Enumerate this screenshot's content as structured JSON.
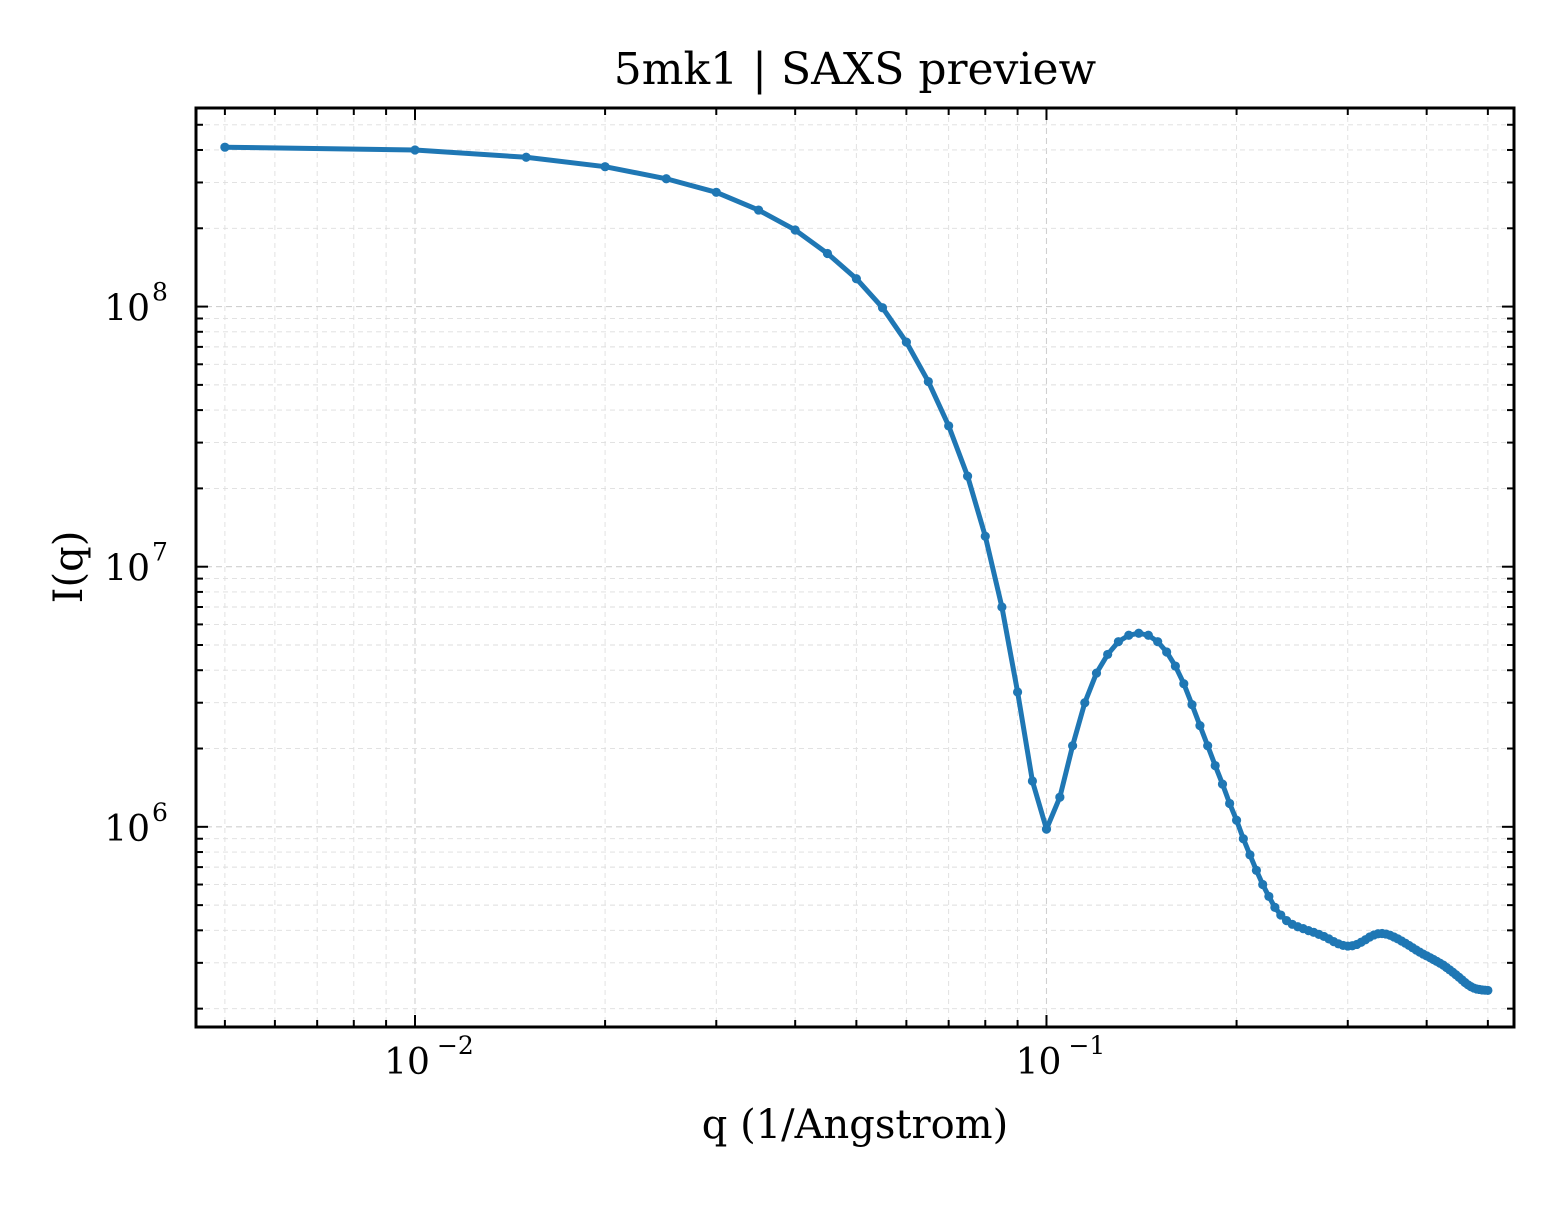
{
  "chart_data": {
    "type": "line",
    "title": "5mk1 | SAXS preview",
    "xlabel": "q (1/Angstrom)",
    "ylabel": "I(q)",
    "xscale": "log",
    "yscale": "log",
    "xlim": [
      0.0045,
      0.55
    ],
    "ylim": [
      170000,
      580000000
    ],
    "x_ticks": [
      {
        "value": 0.01,
        "base": "10",
        "exp": "−2"
      },
      {
        "value": 0.1,
        "base": "10",
        "exp": "−1"
      }
    ],
    "y_ticks": [
      {
        "value": 1000000,
        "base": "10",
        "exp": "6"
      },
      {
        "value": 10000000,
        "base": "10",
        "exp": "7"
      },
      {
        "value": 100000000,
        "base": "10",
        "exp": "8"
      }
    ],
    "grid": true,
    "colors": {
      "series": "#1f77b4"
    },
    "series": [
      {
        "x": [
          0.005,
          0.01,
          0.015,
          0.02,
          0.025,
          0.03,
          0.035,
          0.04,
          0.045,
          0.05,
          0.055,
          0.06,
          0.065,
          0.07,
          0.075,
          0.08,
          0.085,
          0.09,
          0.095,
          0.1,
          0.105,
          0.11,
          0.115,
          0.12,
          0.125,
          0.13,
          0.135,
          0.14,
          0.145,
          0.15,
          0.155,
          0.16,
          0.165,
          0.17,
          0.175,
          0.18,
          0.185,
          0.19,
          0.195,
          0.2,
          0.205,
          0.21,
          0.215,
          0.22,
          0.225,
          0.23,
          0.235,
          0.24,
          0.245,
          0.25,
          0.255,
          0.26,
          0.265,
          0.27,
          0.275,
          0.28,
          0.285,
          0.29,
          0.295,
          0.3,
          0.305,
          0.31,
          0.315,
          0.32,
          0.325,
          0.33,
          0.335,
          0.34,
          0.345,
          0.35,
          0.355,
          0.36,
          0.365,
          0.37,
          0.375,
          0.38,
          0.385,
          0.39,
          0.395,
          0.4,
          0.405,
          0.41,
          0.415,
          0.42,
          0.425,
          0.43,
          0.435,
          0.44,
          0.445,
          0.45,
          0.455,
          0.46,
          0.465,
          0.47,
          0.475,
          0.48,
          0.485,
          0.49,
          0.495,
          0.5
        ],
        "y": [
          410000000,
          400000000,
          375000000,
          345000000,
          310000000,
          275000000,
          235000000,
          197000000,
          160000000,
          128000000,
          99000000,
          73000000,
          51500000,
          34800000,
          22300000,
          13100000,
          7000000,
          3300000,
          1500000,
          980000,
          1300000,
          2050000,
          3000000,
          3900000,
          4600000,
          5150000,
          5450000,
          5550000,
          5450000,
          5150000,
          4700000,
          4150000,
          3550000,
          2950000,
          2450000,
          2050000,
          1720000,
          1460000,
          1230000,
          1060000,
          900000,
          780000,
          680000,
          600000,
          540000,
          490000,
          458000,
          436000,
          422000,
          413000,
          406000,
          399000,
          393000,
          386000,
          379000,
          371000,
          362000,
          355000,
          350000,
          348000,
          349000,
          353000,
          360000,
          368000,
          377000,
          384000,
          388000,
          389000,
          387000,
          383000,
          377000,
          371000,
          364000,
          357000,
          350000,
          343000,
          336000,
          330000,
          324000,
          319000,
          314000,
          309000,
          304000,
          299000,
          294000,
          288000,
          282000,
          276000,
          270000,
          264000,
          258000,
          252000,
          247000,
          243000,
          240000,
          238000,
          237000,
          236000,
          235500,
          235000
        ]
      }
    ]
  }
}
